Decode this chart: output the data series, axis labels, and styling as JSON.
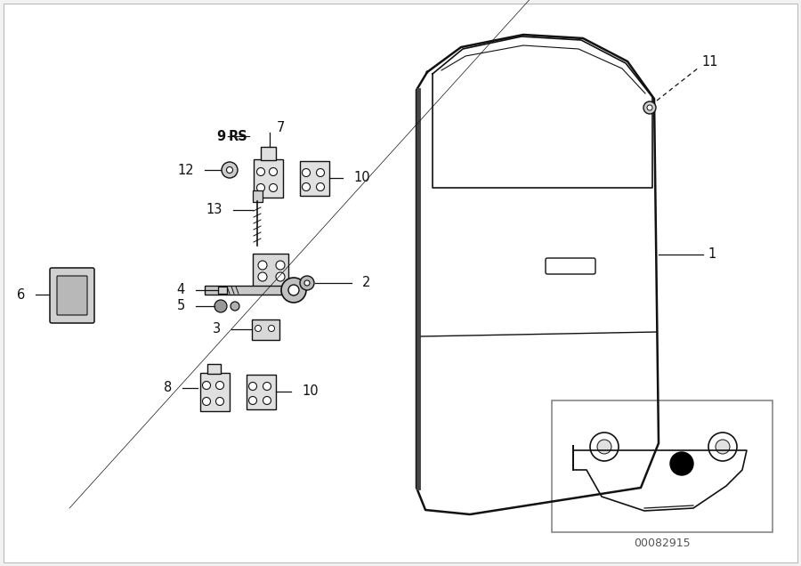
{
  "bg_color": "#f2f2f2",
  "white": "#ffffff",
  "black": "#111111",
  "gray_light": "#d8d8d8",
  "gray_med": "#aaaaaa",
  "part_number": "00082915",
  "lw_door": 1.8,
  "lw_part": 1.2,
  "lw_leader": 1.0,
  "fs_label": 10.5,
  "fs_partnum": 9
}
